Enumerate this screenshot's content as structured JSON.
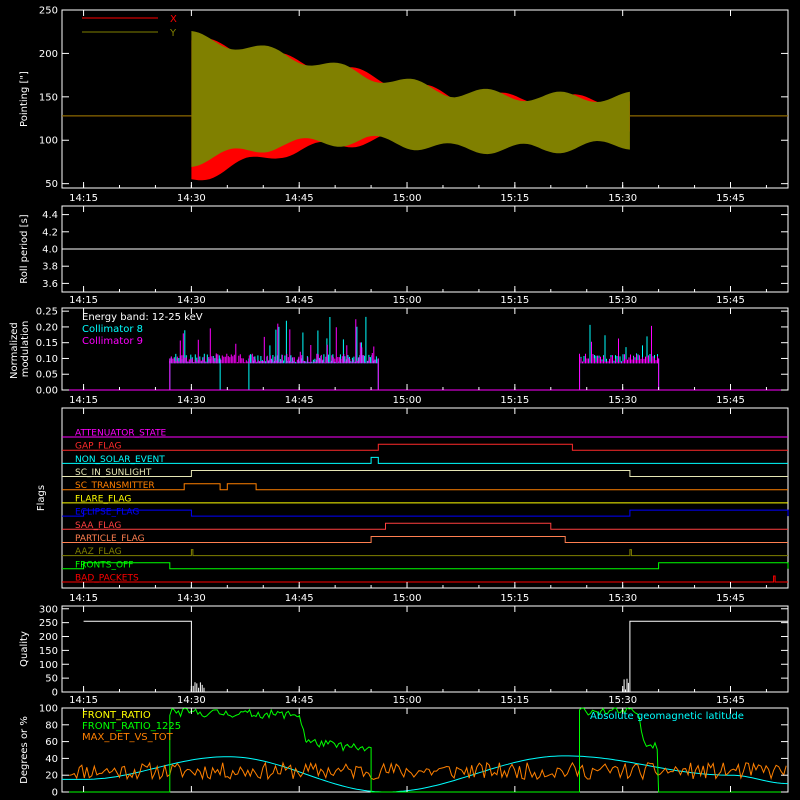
{
  "colors": {
    "background": "#000000",
    "axis": "#ffffff",
    "x_series": "#ff0000",
    "y_series": "#808000",
    "cyan": "#00ffff",
    "magenta": "#ff00ff",
    "green": "#00ff00",
    "orange": "#ff8000",
    "yellow": "#ffff00",
    "blue": "#0000ff"
  },
  "chart_data": [
    {
      "type": "line",
      "ylabel": "Pointing [\"]",
      "ylim": [
        45,
        250
      ],
      "yticks": [
        50,
        100,
        150,
        200,
        250
      ],
      "x_ticklabels": [
        "14:15",
        "14:30",
        "14:45",
        "15:00",
        "15:15",
        "15:30",
        "15:45"
      ],
      "legend": "top-left",
      "series": [
        {
          "name": "X",
          "color": "#ff0000",
          "baseline": 128,
          "active_range": [
            "14:30",
            "15:31"
          ],
          "envelope_high": [
            215,
            195,
            175,
            150,
            148,
            145
          ],
          "envelope_low": [
            55,
            85,
            100,
            110,
            110,
            110
          ]
        },
        {
          "name": "Y",
          "color": "#808000",
          "baseline": 128,
          "active_range": [
            "14:30",
            "15:31"
          ],
          "envelope_high": [
            220,
            200,
            175,
            155,
            150,
            150
          ],
          "envelope_low": [
            75,
            95,
            100,
            90,
            90,
            95
          ]
        }
      ]
    },
    {
      "type": "line",
      "ylabel": "Roll period [s]",
      "ylim": [
        3.5,
        4.5
      ],
      "yticks": [
        3.6,
        3.8,
        4.0,
        4.2,
        4.4
      ],
      "x_ticklabels": [
        "14:15",
        "14:30",
        "14:45",
        "15:00",
        "15:15",
        "15:30",
        "15:45"
      ],
      "series": [
        {
          "values": [
            4.0,
            4.0,
            4.0,
            4.0,
            4.0,
            4.0,
            4.0
          ]
        }
      ]
    },
    {
      "type": "line",
      "ylabel": "Normalized modulation",
      "ylim": [
        0.0,
        0.26
      ],
      "yticks": [
        0.0,
        0.05,
        0.1,
        0.15,
        0.2,
        0.25
      ],
      "x_ticklabels": [
        "14:15",
        "14:30",
        "14:45",
        "15:00",
        "15:15",
        "15:30",
        "15:45"
      ],
      "annotation": "Energy band: 12-25 keV",
      "series": [
        {
          "name": "Collimator 8",
          "color": "#00ffff",
          "typical": 0.1,
          "active_ranges": [
            [
              "14:27",
              "14:34"
            ],
            [
              "14:38",
              "14:56"
            ],
            [
              "15:24",
              "15:35"
            ]
          ]
        },
        {
          "name": "Collimator 9",
          "color": "#ff00ff",
          "typical": 0.1,
          "active_ranges": [
            [
              "14:27",
              "14:56"
            ],
            [
              "15:24",
              "15:35"
            ]
          ]
        }
      ]
    },
    {
      "type": "line",
      "ylabel": "Flags",
      "x_ticklabels": [
        "14:15",
        "14:30",
        "14:45",
        "15:00",
        "15:15",
        "15:30",
        "15:45"
      ],
      "flags": [
        {
          "name": "ATTENUATOR_STATE",
          "color": "#ff00ff",
          "high": []
        },
        {
          "name": "GAP_FLAG",
          "color": "#ff2a2a",
          "high": [
            [
              "14:56",
              "15:23"
            ]
          ]
        },
        {
          "name": "NON_SOLAR_EVENT",
          "color": "#00ffff",
          "high": [
            [
              "14:55",
              "14:56"
            ]
          ]
        },
        {
          "name": "SC_IN_SUNLIGHT",
          "color": "#e6e6b4",
          "high": [
            [
              "14:30",
              "15:31"
            ]
          ]
        },
        {
          "name": "SC_TRANSMITTER",
          "color": "#ff8000",
          "high": [
            [
              "14:29",
              "14:34"
            ],
            [
              "14:35",
              "14:39"
            ]
          ]
        },
        {
          "name": "FLARE_FLAG",
          "color": "#ffff00",
          "high": []
        },
        {
          "name": "ECLIPSE_FLAG",
          "color": "#0000ff",
          "high": [
            [
              "14:15",
              "14:30"
            ],
            [
              "15:31",
              "15:53"
            ]
          ]
        },
        {
          "name": "SAA_FLAG",
          "color": "#ff4040",
          "high": [
            [
              "14:57",
              "15:20"
            ]
          ]
        },
        {
          "name": "PARTICLE_FLAG",
          "color": "#ff7f50",
          "high": [
            [
              "14:55",
              "15:22"
            ]
          ]
        },
        {
          "name": "AAZ_FLAG",
          "color": "#808000",
          "high": [
            [
              "14:30",
              "14:30"
            ],
            [
              "15:31",
              "15:31"
            ]
          ]
        },
        {
          "name": "FRONTS_OFF",
          "color": "#00ff00",
          "high": [
            [
              "14:15",
              "14:27"
            ],
            [
              "15:35",
              "15:53"
            ]
          ]
        },
        {
          "name": "BAD_PACKETS",
          "color": "#ff0000",
          "high": [
            [
              "15:51",
              "15:51"
            ]
          ]
        }
      ]
    },
    {
      "type": "line",
      "ylabel": "Quality",
      "ylim": [
        0,
        310
      ],
      "yticks": [
        0,
        50,
        100,
        150,
        200,
        250,
        300
      ],
      "x_ticklabels": [
        "14:15",
        "14:30",
        "14:45",
        "15:00",
        "15:15",
        "15:30",
        "15:45"
      ],
      "series": [
        {
          "values_by_time": [
            [
              "14:15",
              255
            ],
            [
              "14:30",
              255
            ],
            [
              "14:30",
              0
            ],
            [
              "15:31",
              0
            ],
            [
              "15:31",
              255
            ],
            [
              "15:53",
              255
            ]
          ]
        }
      ]
    },
    {
      "type": "line",
      "ylabel": "Degrees or %",
      "ylim": [
        0,
        100
      ],
      "yticks": [
        0,
        20,
        40,
        60,
        80,
        100
      ],
      "x_ticklabels": [
        "14:15",
        "14:30",
        "14:45",
        "15:00",
        "15:15",
        "15:30",
        "15:45"
      ],
      "annotation": "Absolute geomagnetic latitude",
      "series": [
        {
          "name": "FRONT_RATIO",
          "color": "#ffff00"
        },
        {
          "name": "FRONT_RATIO_1225",
          "color": "#00ff00",
          "segments": [
            [
              [
                "14:27",
                95
              ],
              [
                "14:45",
                92
              ],
              [
                "14:46",
                60
              ],
              [
                "14:55",
                50
              ]
            ],
            [
              [
                "15:24",
                97
              ],
              [
                "15:32",
                95
              ],
              [
                "15:33",
                60
              ],
              [
                "15:35",
                55
              ]
            ]
          ]
        },
        {
          "name": "MAX_DET_VS_TOT",
          "color": "#ff8000",
          "typical": 25
        },
        {
          "name": "Absolute geomagnetic latitude",
          "color": "#00ffff",
          "values_by_time": [
            [
              "14:15",
              15
            ],
            [
              "14:35",
              42
            ],
            [
              "14:57",
              0
            ],
            [
              "15:22",
              43
            ],
            [
              "15:45",
              20
            ],
            [
              "15:53",
              10
            ]
          ]
        }
      ]
    }
  ]
}
